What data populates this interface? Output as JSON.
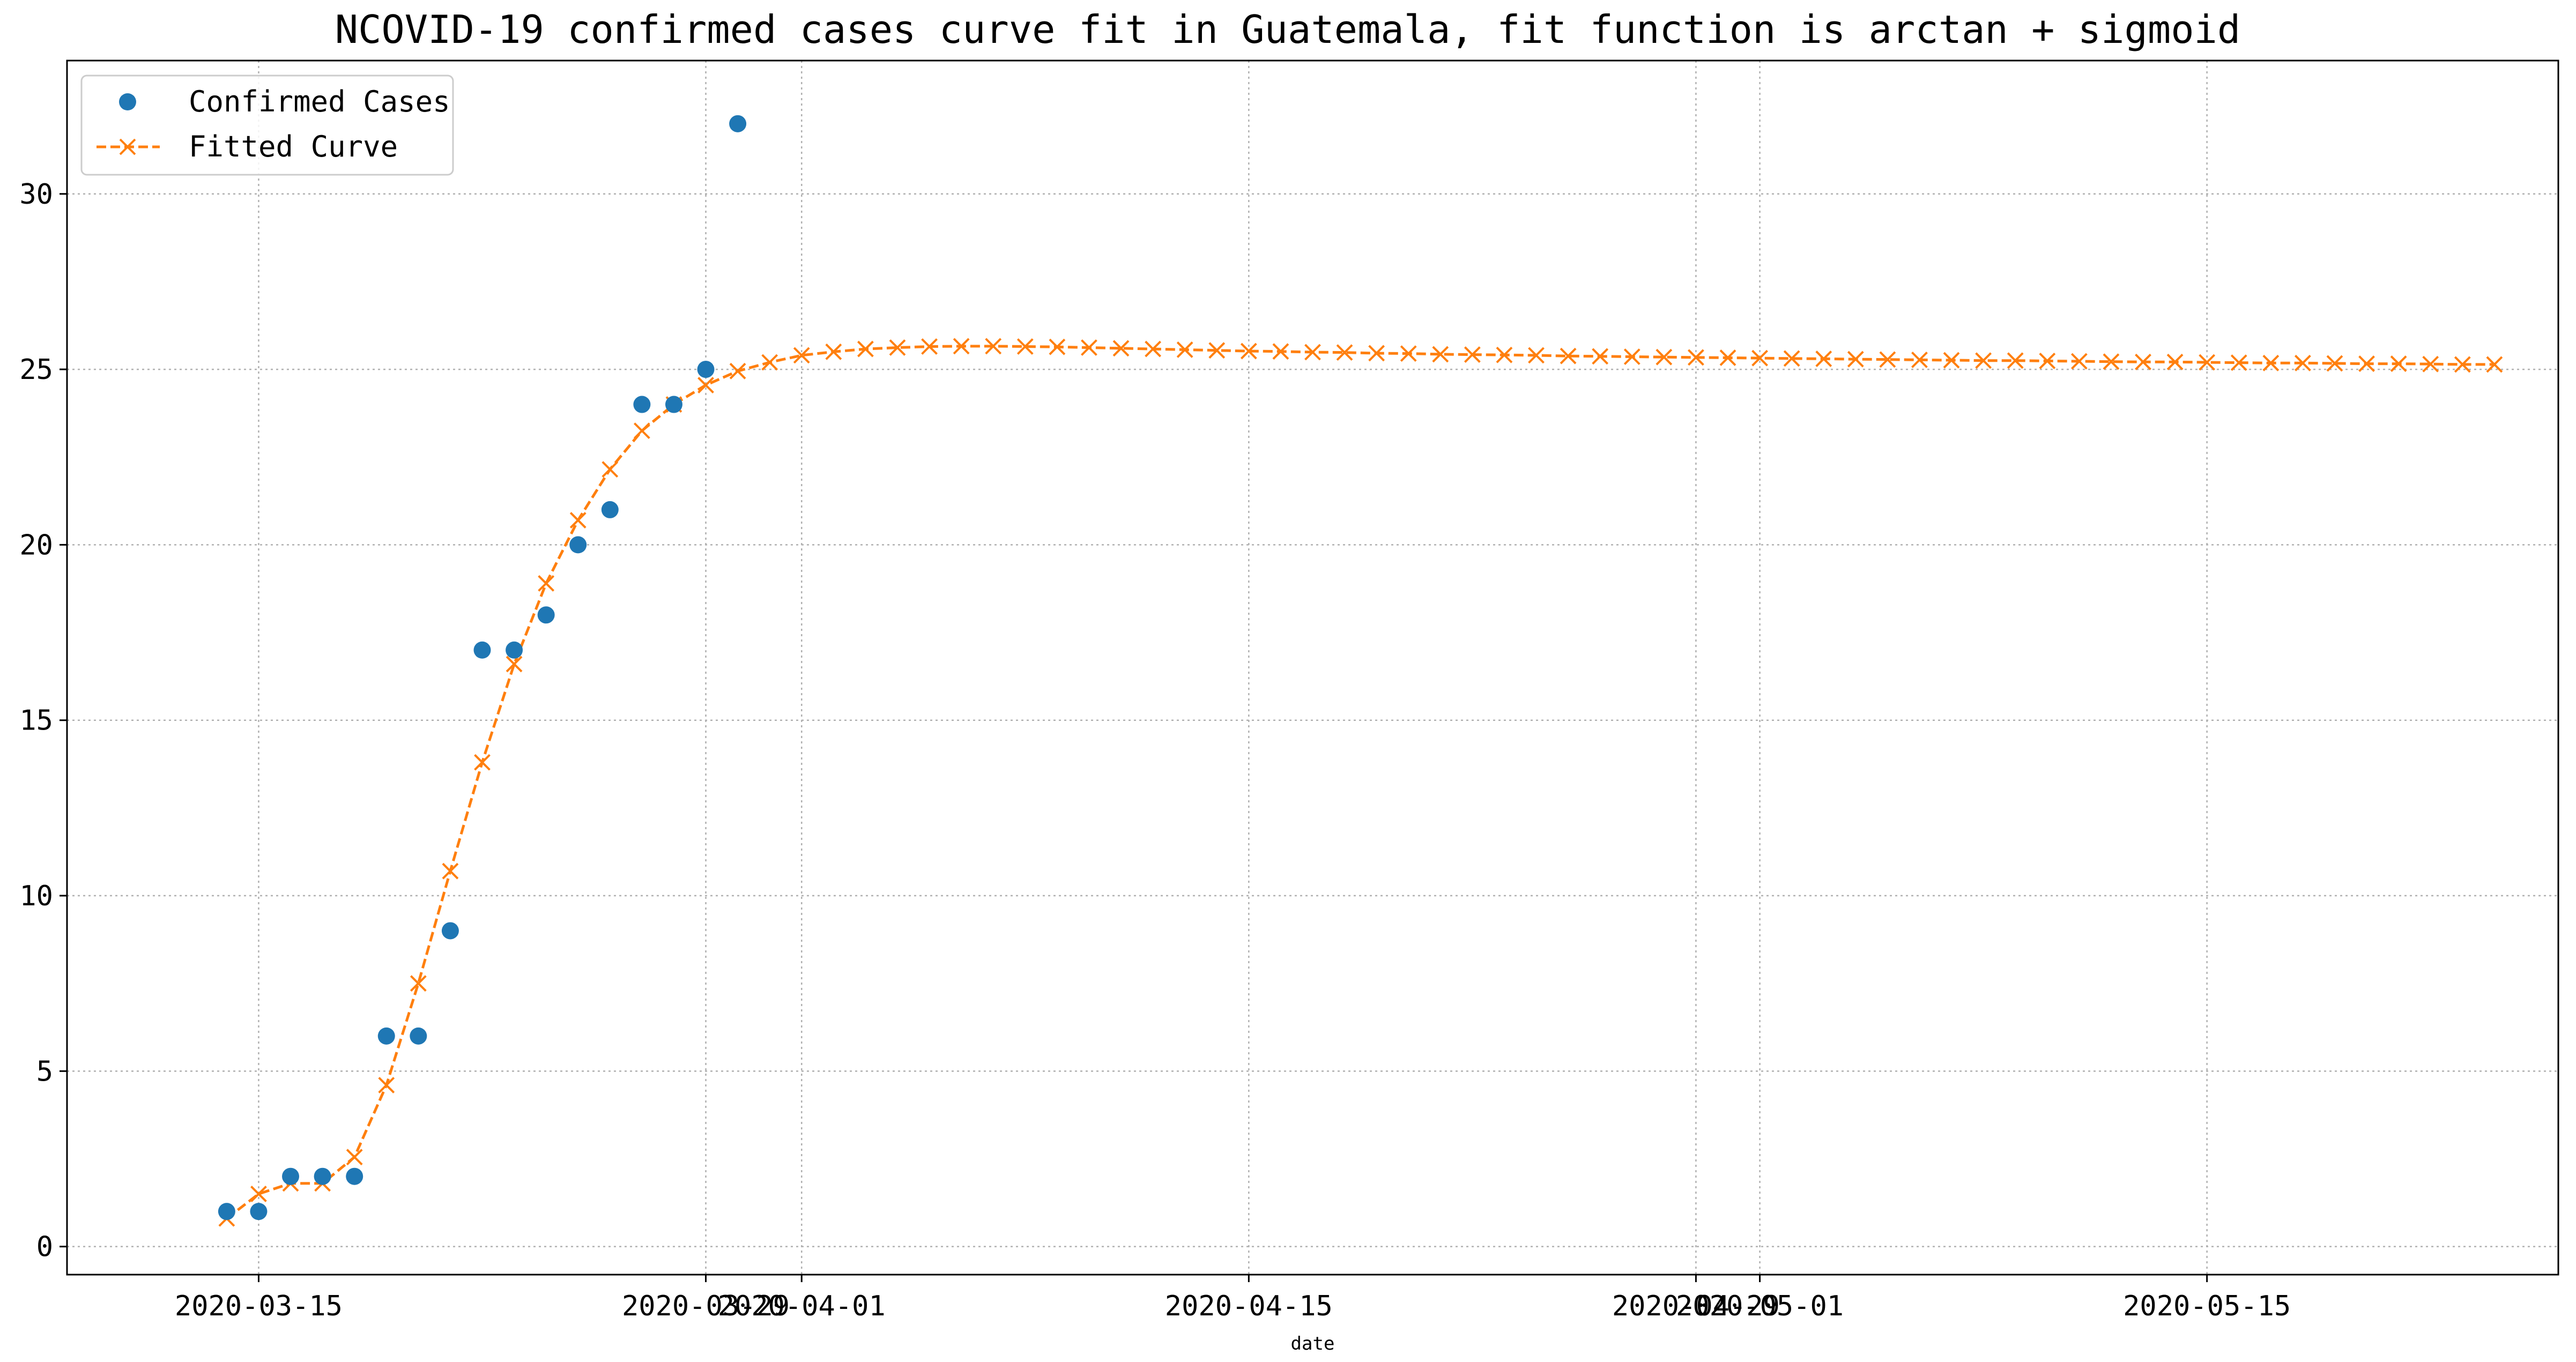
{
  "chart_data": {
    "type": "scatter",
    "title": "NCOVID-19 confirmed cases curve fit in Guatemala, fit function is arctan + sigmoid",
    "xlabel": "date",
    "ylabel": "",
    "x_type": "date",
    "xlim": [
      "2020-03-09",
      "2020-05-26"
    ],
    "ylim": [
      -0.8,
      33.8
    ],
    "grid": true,
    "legend_position": "upper-left",
    "x_ticks": [
      {
        "date": "2020-03-15",
        "label": "2020-03-15"
      },
      {
        "date": "2020-03-29",
        "label": "2020-03-29"
      },
      {
        "date": "2020-04-01",
        "label": "2020-04-01"
      },
      {
        "date": "2020-04-15",
        "label": "2020-04-15"
      },
      {
        "date": "2020-04-29",
        "label": "2020-04-29"
      },
      {
        "date": "2020-05-01",
        "label": "2020-05-01"
      },
      {
        "date": "2020-05-15",
        "label": "2020-05-15"
      }
    ],
    "y_ticks": [
      0,
      5,
      10,
      15,
      20,
      25,
      30
    ],
    "series": [
      {
        "name": "Confirmed Cases",
        "kind": "markers",
        "color": "#1f77b4",
        "marker": "circle",
        "points": [
          [
            "2020-03-14",
            1
          ],
          [
            "2020-03-15",
            1
          ],
          [
            "2020-03-16",
            2
          ],
          [
            "2020-03-17",
            2
          ],
          [
            "2020-03-18",
            2
          ],
          [
            "2020-03-19",
            6
          ],
          [
            "2020-03-20",
            6
          ],
          [
            "2020-03-21",
            9
          ],
          [
            "2020-03-22",
            17
          ],
          [
            "2020-03-23",
            17
          ],
          [
            "2020-03-24",
            18
          ],
          [
            "2020-03-25",
            20
          ],
          [
            "2020-03-26",
            21
          ],
          [
            "2020-03-27",
            24
          ],
          [
            "2020-03-28",
            24
          ],
          [
            "2020-03-29",
            25
          ],
          [
            "2020-03-30",
            32
          ]
        ]
      },
      {
        "name": "Fitted Curve",
        "kind": "dashed-line-x-markers",
        "color": "#ff7f0e",
        "marker": "x",
        "x_start": "2020-03-14",
        "x_step_days": 1,
        "values": [
          0.8,
          1.5,
          1.8,
          1.8,
          2.55,
          4.6,
          7.5,
          10.7,
          13.8,
          16.6,
          18.9,
          20.7,
          22.15,
          23.25,
          24.0,
          24.55,
          24.95,
          25.2,
          25.4,
          25.5,
          25.58,
          25.62,
          25.65,
          25.66,
          25.66,
          25.65,
          25.64,
          25.62,
          25.6,
          25.58,
          25.56,
          25.54,
          25.52,
          25.51,
          25.49,
          25.48,
          25.46,
          25.45,
          25.43,
          25.42,
          25.41,
          25.4,
          25.38,
          25.37,
          25.36,
          25.35,
          25.34,
          25.33,
          25.32,
          25.31,
          25.3,
          25.29,
          25.28,
          25.27,
          25.26,
          25.25,
          25.25,
          25.24,
          25.23,
          25.22,
          25.21,
          25.21,
          25.2,
          25.19,
          25.18,
          25.18,
          25.17,
          25.16,
          25.16,
          25.15,
          25.14,
          25.14
        ]
      }
    ]
  }
}
